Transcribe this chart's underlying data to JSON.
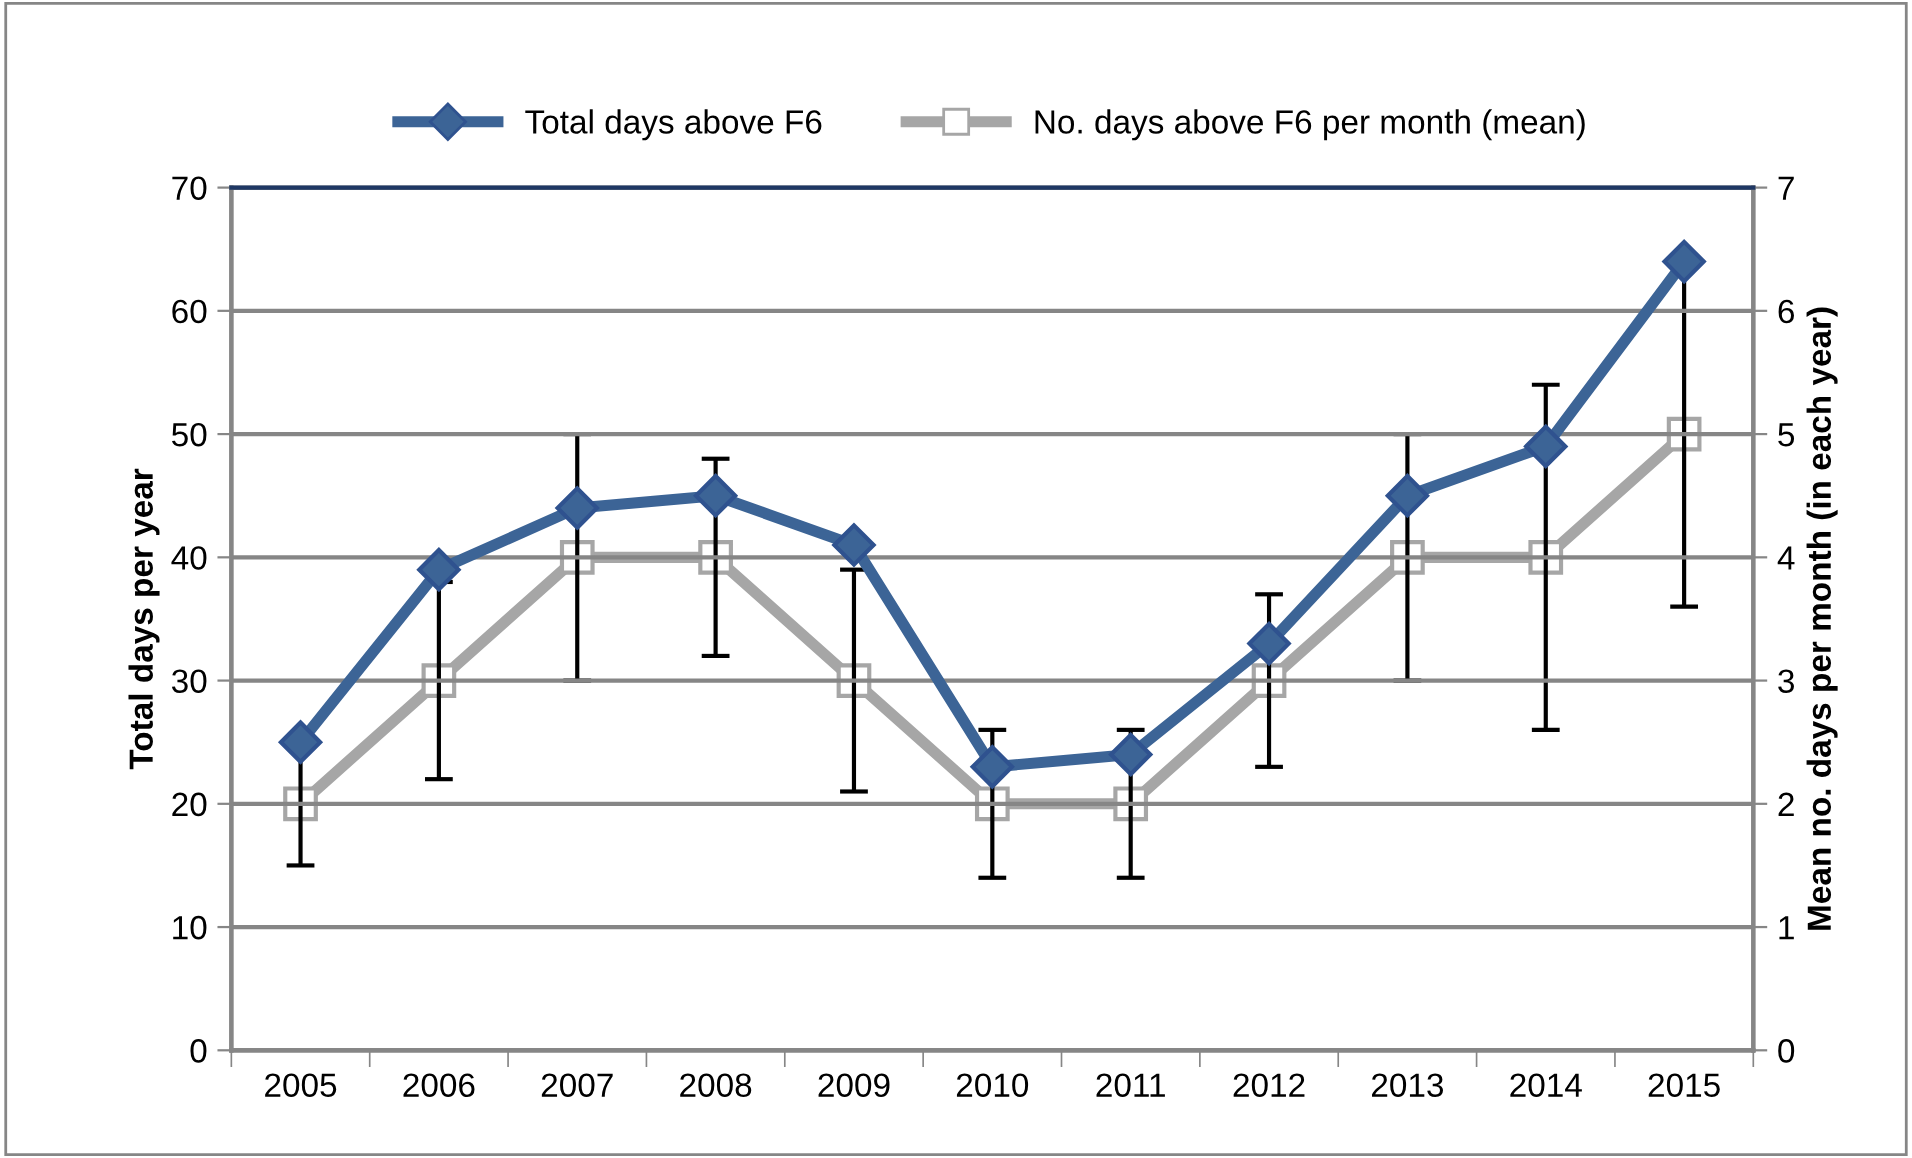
{
  "chart_data": {
    "type": "line",
    "ylabel": "Total days per year",
    "y2label": "Mean no. days per month (in each year)",
    "categories": [
      "2005",
      "2006",
      "2007",
      "2008",
      "2009",
      "2010",
      "2011",
      "2012",
      "2013",
      "2014",
      "2015"
    ],
    "series": [
      {
        "name": "Total days above F6",
        "color": "#3c6496",
        "marker": "diamond",
        "values": [
          25,
          39,
          44,
          45,
          41,
          23,
          24,
          33,
          45,
          49,
          64
        ]
      },
      {
        "name": "No. days above F6 per month (mean)",
        "color": "#a6a6a6",
        "marker": "square",
        "axis": "y2",
        "values": [
          2,
          3,
          4,
          4,
          3,
          2,
          2,
          3,
          4,
          4,
          5
        ],
        "errors": [
          0.5,
          0.8,
          1.0,
          0.8,
          0.9,
          0.6,
          0.6,
          0.7,
          1.0,
          1.4,
          1.4
        ]
      }
    ],
    "ylim": [
      0,
      70
    ],
    "yticks": [
      0,
      10,
      20,
      30,
      40,
      50,
      60,
      70
    ],
    "y2lim": [
      0,
      7
    ],
    "y2ticks": [
      0,
      1,
      2,
      3,
      4,
      5,
      6,
      7
    ],
    "grid": "y",
    "legend": "top",
    "line_style": "solid"
  }
}
